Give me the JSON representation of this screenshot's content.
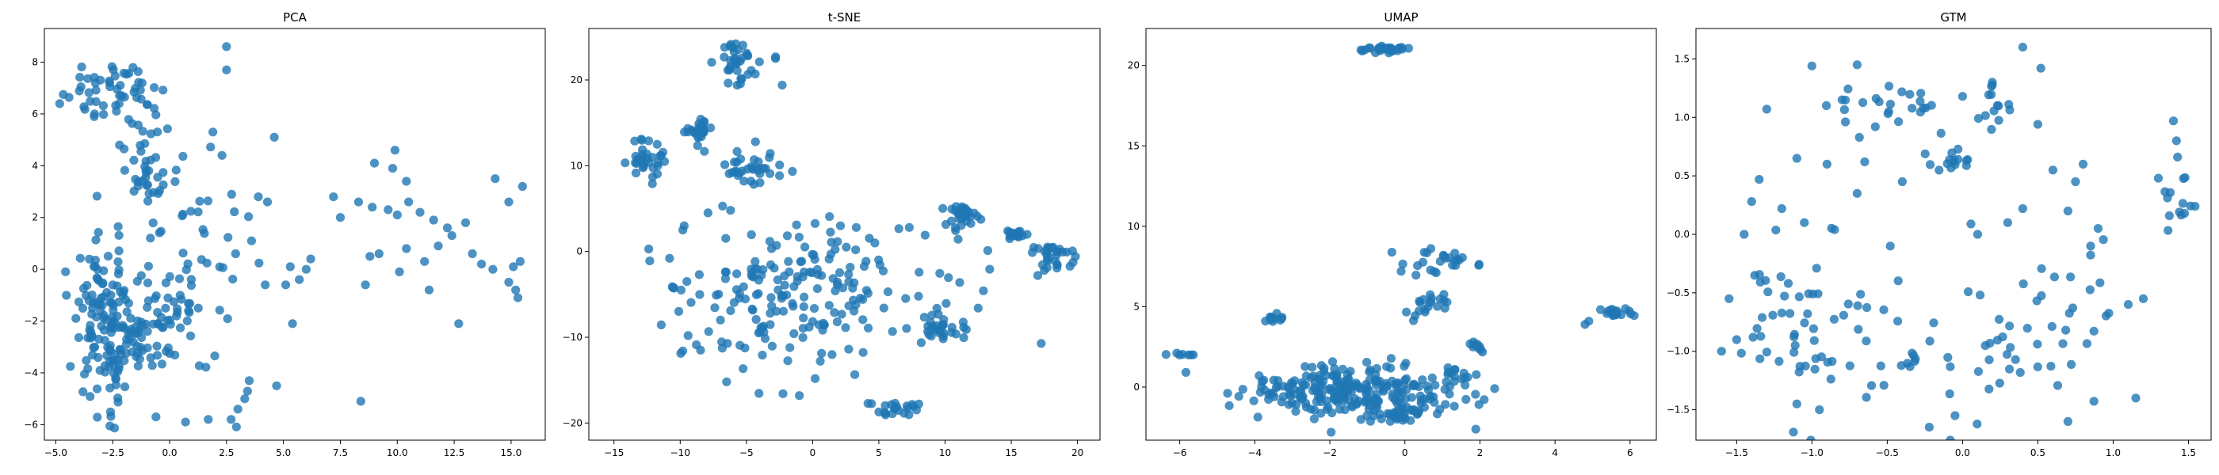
{
  "figure": {
    "background": "#ffffff",
    "marker_color": "#1f77b4",
    "marker_alpha": 0.8
  },
  "chart_data": [
    {
      "type": "scatter",
      "title": "PCA",
      "xlabel": "",
      "ylabel": "",
      "xlim": [
        -5.5,
        16.5
      ],
      "ylim": [
        -6.6,
        9.3
      ],
      "xticks": [
        -5.0,
        -2.5,
        0.0,
        2.5,
        5.0,
        7.5,
        10.0,
        12.5,
        15.0
      ],
      "yticks": [
        -6,
        -4,
        -2,
        0,
        2,
        4,
        6,
        8
      ],
      "grid": false,
      "clusters": [
        {
          "n": 130,
          "cx": -2.8,
          "cy": -2.0,
          "sx": 0.7,
          "sy": 1.6
        },
        {
          "n": 70,
          "cx": -0.8,
          "cy": -2.2,
          "sx": 1.2,
          "sy": 1.2
        },
        {
          "n": 35,
          "cx": -3.0,
          "cy": 7.0,
          "sx": 0.8,
          "sy": 0.6
        },
        {
          "n": 25,
          "cx": -1.3,
          "cy": 6.6,
          "sx": 0.6,
          "sy": 0.8
        },
        {
          "n": 30,
          "cx": -1.2,
          "cy": 3.5,
          "sx": 0.5,
          "sy": 0.7
        },
        {
          "n": 25,
          "cx": 1.5,
          "cy": -1.3,
          "sx": 1.2,
          "sy": 1.8
        },
        {
          "n": 20,
          "cx": 1.0,
          "cy": 2.0,
          "sx": 1.0,
          "sy": 1.2
        }
      ],
      "points": [
        [
          2.5,
          8.6
        ],
        [
          2.5,
          7.7
        ],
        [
          4.6,
          5.1
        ],
        [
          -2.2,
          4.8
        ],
        [
          7.2,
          2.8
        ],
        [
          8.3,
          2.6
        ],
        [
          8.9,
          2.4
        ],
        [
          9.6,
          2.3
        ],
        [
          10.0,
          2.1
        ],
        [
          10.5,
          2.6
        ],
        [
          11.0,
          2.2
        ],
        [
          11.6,
          1.9
        ],
        [
          12.2,
          1.6
        ],
        [
          13.0,
          1.8
        ],
        [
          14.3,
          3.5
        ],
        [
          14.9,
          2.6
        ],
        [
          15.5,
          3.2
        ],
        [
          9.0,
          4.1
        ],
        [
          9.9,
          4.6
        ],
        [
          9.8,
          3.9
        ],
        [
          10.4,
          3.4
        ],
        [
          8.8,
          0.5
        ],
        [
          9.2,
          0.6
        ],
        [
          10.4,
          0.8
        ],
        [
          11.2,
          0.3
        ],
        [
          11.8,
          0.9
        ],
        [
          12.4,
          1.3
        ],
        [
          13.3,
          0.6
        ],
        [
          13.7,
          0.2
        ],
        [
          14.2,
          0.0
        ],
        [
          15.1,
          0.1
        ],
        [
          15.4,
          0.3
        ],
        [
          14.9,
          -0.5
        ],
        [
          15.3,
          -1.1
        ],
        [
          15.2,
          -0.8
        ],
        [
          11.4,
          -0.8
        ],
        [
          12.7,
          -2.1
        ],
        [
          10.1,
          -0.1
        ],
        [
          8.6,
          -0.6
        ],
        [
          7.5,
          2.0
        ],
        [
          6.0,
          0.0
        ],
        [
          5.3,
          0.1
        ],
        [
          6.2,
          0.4
        ],
        [
          5.7,
          -0.4
        ],
        [
          5.1,
          -0.6
        ],
        [
          5.4,
          -2.1
        ],
        [
          8.4,
          -5.1
        ],
        [
          4.7,
          -4.5
        ],
        [
          3.5,
          -4.3
        ],
        [
          3.3,
          -5.0
        ],
        [
          2.7,
          -5.8
        ],
        [
          3.0,
          -5.4
        ],
        [
          1.7,
          -5.8
        ],
        [
          0.7,
          -5.9
        ],
        [
          -0.6,
          -5.7
        ],
        [
          4.2,
          -0.6
        ],
        [
          3.9,
          2.8
        ],
        [
          4.3,
          2.6
        ],
        [
          3.6,
          1.1
        ],
        [
          2.9,
          0.6
        ],
        [
          2.3,
          4.4
        ],
        [
          1.9,
          5.3
        ]
      ]
    },
    {
      "type": "scatter",
      "title": "t-SNE",
      "xlabel": "",
      "ylabel": "",
      "xlim": [
        -16.9,
        21.7
      ],
      "ylim": [
        -22.0,
        26.0
      ],
      "xticks": [
        -15,
        -10,
        -5,
        0,
        5,
        10,
        15,
        20
      ],
      "yticks": [
        -20,
        -10,
        0,
        10,
        20
      ],
      "grid": false,
      "clusters": [
        {
          "n": 35,
          "cx": -5.5,
          "cy": 22.0,
          "sx": 0.8,
          "sy": 1.2
        },
        {
          "n": 35,
          "cx": -12.5,
          "cy": 11.0,
          "sx": 1.2,
          "sy": 1.0
        },
        {
          "n": 25,
          "cx": -8.5,
          "cy": 14.5,
          "sx": 0.5,
          "sy": 0.6
        },
        {
          "n": 35,
          "cx": -4.5,
          "cy": 10.0,
          "sx": 1.3,
          "sy": 1.2
        },
        {
          "n": 30,
          "cx": 11.5,
          "cy": 4.0,
          "sx": 0.8,
          "sy": 0.6
        },
        {
          "n": 20,
          "cx": 15.2,
          "cy": 2.0,
          "sx": 0.3,
          "sy": 0.3
        },
        {
          "n": 30,
          "cx": 18.5,
          "cy": -0.5,
          "sx": 1.0,
          "sy": 1.0
        },
        {
          "n": 30,
          "cx": 9.8,
          "cy": -9.0,
          "sx": 1.0,
          "sy": 1.0
        },
        {
          "n": 22,
          "cx": 6.5,
          "cy": -18.5,
          "sx": 1.0,
          "sy": 0.5
        },
        {
          "n": 190,
          "cx": -1.0,
          "cy": -5.0,
          "sx": 5.0,
          "sy": 4.5
        }
      ],
      "points": [
        [
          -2.8,
          22.7
        ],
        [
          -2.8,
          22.5
        ],
        [
          -2.3,
          19.4
        ],
        [
          -12.1,
          7.9
        ],
        [
          -9.7,
          3.0
        ],
        [
          -10.8,
          -0.8
        ],
        [
          -12.3,
          -1.1
        ],
        [
          -10.6,
          -4.1
        ],
        [
          -9.5,
          -3.5
        ],
        [
          -9.8,
          -11.6
        ],
        [
          -6.5,
          -15.2
        ],
        [
          -1.0,
          -16.8
        ],
        [
          2.1,
          3.0
        ],
        [
          3.3,
          2.8
        ],
        [
          7.3,
          2.8
        ],
        [
          8.5,
          1.9
        ],
        [
          17.5,
          -2.2
        ],
        [
          17.0,
          -2.8
        ],
        [
          12.5,
          -6.6
        ],
        [
          -6.8,
          5.3
        ],
        [
          -6.2,
          4.8
        ],
        [
          -7.9,
          4.5
        ],
        [
          -9.8,
          2.5
        ]
      ]
    },
    {
      "type": "scatter",
      "title": "UMAP",
      "xlabel": "",
      "ylabel": "",
      "xlim": [
        -6.9,
        6.7
      ],
      "ylim": [
        -3.3,
        22.3
      ],
      "xticks": [
        -6,
        -4,
        -2,
        0,
        2,
        4,
        6
      ],
      "yticks": [
        0,
        5,
        10,
        15,
        20
      ],
      "grid": false,
      "clusters": [
        {
          "n": 30,
          "cx": -0.5,
          "cy": 21.0,
          "sx": 0.3,
          "sy": 0.1
        },
        {
          "n": 6,
          "cx": -6.0,
          "cy": 2.0,
          "sx": 0.25,
          "sy": 0.08
        },
        {
          "n": 12,
          "cx": -3.5,
          "cy": 4.3,
          "sx": 0.12,
          "sy": 0.15
        },
        {
          "n": 250,
          "cx": -1.4,
          "cy": -0.3,
          "sx": 1.3,
          "sy": 0.9
        },
        {
          "n": 25,
          "cx": 1.0,
          "cy": 7.8,
          "sx": 0.5,
          "sy": 0.4
        },
        {
          "n": 20,
          "cx": 0.6,
          "cy": 5.0,
          "sx": 0.3,
          "sy": 0.4
        },
        {
          "n": 20,
          "cx": 0.0,
          "cy": -1.7,
          "sx": 0.25,
          "sy": 0.3
        },
        {
          "n": 15,
          "cx": 1.2,
          "cy": 0.7,
          "sx": 0.4,
          "sy": 0.25
        },
        {
          "n": 10,
          "cx": 1.9,
          "cy": 2.6,
          "sx": 0.12,
          "sy": 0.2
        },
        {
          "n": 18,
          "cx": 5.6,
          "cy": 4.6,
          "sx": 0.35,
          "sy": 0.15
        }
      ],
      "points": [
        [
          -0.1,
          7.2
        ],
        [
          4.8,
          3.9
        ],
        [
          4.9,
          4.1
        ],
        [
          -5.7,
          2.0
        ]
      ]
    },
    {
      "type": "scatter",
      "title": "GTM",
      "xlabel": "",
      "ylabel": "",
      "xlim": [
        -1.77,
        1.65
      ],
      "ylim": [
        -1.76,
        1.76
      ],
      "xticks": [
        -1.5,
        -1.0,
        -0.5,
        0.0,
        0.5,
        1.0,
        1.5
      ],
      "yticks": [
        -1.5,
        -1.0,
        -0.5,
        0.0,
        0.5,
        1.0,
        1.5
      ],
      "grid": false,
      "clusters": [
        {
          "n": 24,
          "cx": -0.45,
          "cy": 1.15,
          "sx": 0.18,
          "sy": 0.12
        },
        {
          "n": 14,
          "cx": 0.23,
          "cy": 1.15,
          "sx": 0.06,
          "sy": 0.1
        },
        {
          "n": 16,
          "cx": -0.1,
          "cy": 0.65,
          "sx": 0.1,
          "sy": 0.08
        },
        {
          "n": 14,
          "cx": 1.43,
          "cy": 0.35,
          "sx": 0.05,
          "sy": 0.15
        },
        {
          "n": 50,
          "cx": -1.05,
          "cy": -0.75,
          "sx": 0.25,
          "sy": 0.35
        },
        {
          "n": 40,
          "cx": 0.55,
          "cy": -0.8,
          "sx": 0.3,
          "sy": 0.4
        },
        {
          "n": 30,
          "cx": -0.3,
          "cy": -1.1,
          "sx": 0.35,
          "sy": 0.35
        }
      ],
      "points": [
        [
          -1.0,
          1.44
        ],
        [
          0.4,
          1.6
        ],
        [
          0.52,
          1.42
        ],
        [
          -0.7,
          1.45
        ],
        [
          -0.8,
          1.15
        ],
        [
          0.0,
          1.18
        ],
        [
          -1.3,
          1.07
        ],
        [
          -1.1,
          0.65
        ],
        [
          -0.9,
          0.6
        ],
        [
          -1.35,
          0.47
        ],
        [
          -1.4,
          0.28
        ],
        [
          -1.2,
          0.22
        ],
        [
          -1.05,
          0.1
        ],
        [
          -0.85,
          0.04
        ],
        [
          -0.48,
          -0.1
        ],
        [
          -0.7,
          0.35
        ],
        [
          -0.65,
          0.62
        ],
        [
          -0.4,
          0.45
        ],
        [
          0.1,
          0.0
        ],
        [
          0.4,
          0.22
        ],
        [
          0.3,
          0.1
        ],
        [
          0.7,
          0.2
        ],
        [
          0.9,
          0.05
        ],
        [
          1.3,
          0.48
        ],
        [
          1.4,
          0.97
        ],
        [
          1.42,
          0.8
        ],
        [
          0.5,
          0.94
        ],
        [
          0.75,
          0.45
        ],
        [
          0.8,
          0.6
        ],
        [
          0.6,
          0.55
        ],
        [
          0.85,
          -0.1
        ],
        [
          1.2,
          -0.55
        ],
        [
          1.1,
          -0.6
        ],
        [
          1.15,
          -1.4
        ],
        [
          0.7,
          -1.6
        ],
        [
          -0.95,
          -1.5
        ],
        [
          -1.1,
          -1.45
        ],
        [
          -1.5,
          -0.9
        ],
        [
          -1.6,
          -1.0
        ],
        [
          -1.55,
          -0.55
        ],
        [
          -0.05,
          -1.55
        ],
        [
          -1.45,
          0.0
        ]
      ]
    }
  ]
}
